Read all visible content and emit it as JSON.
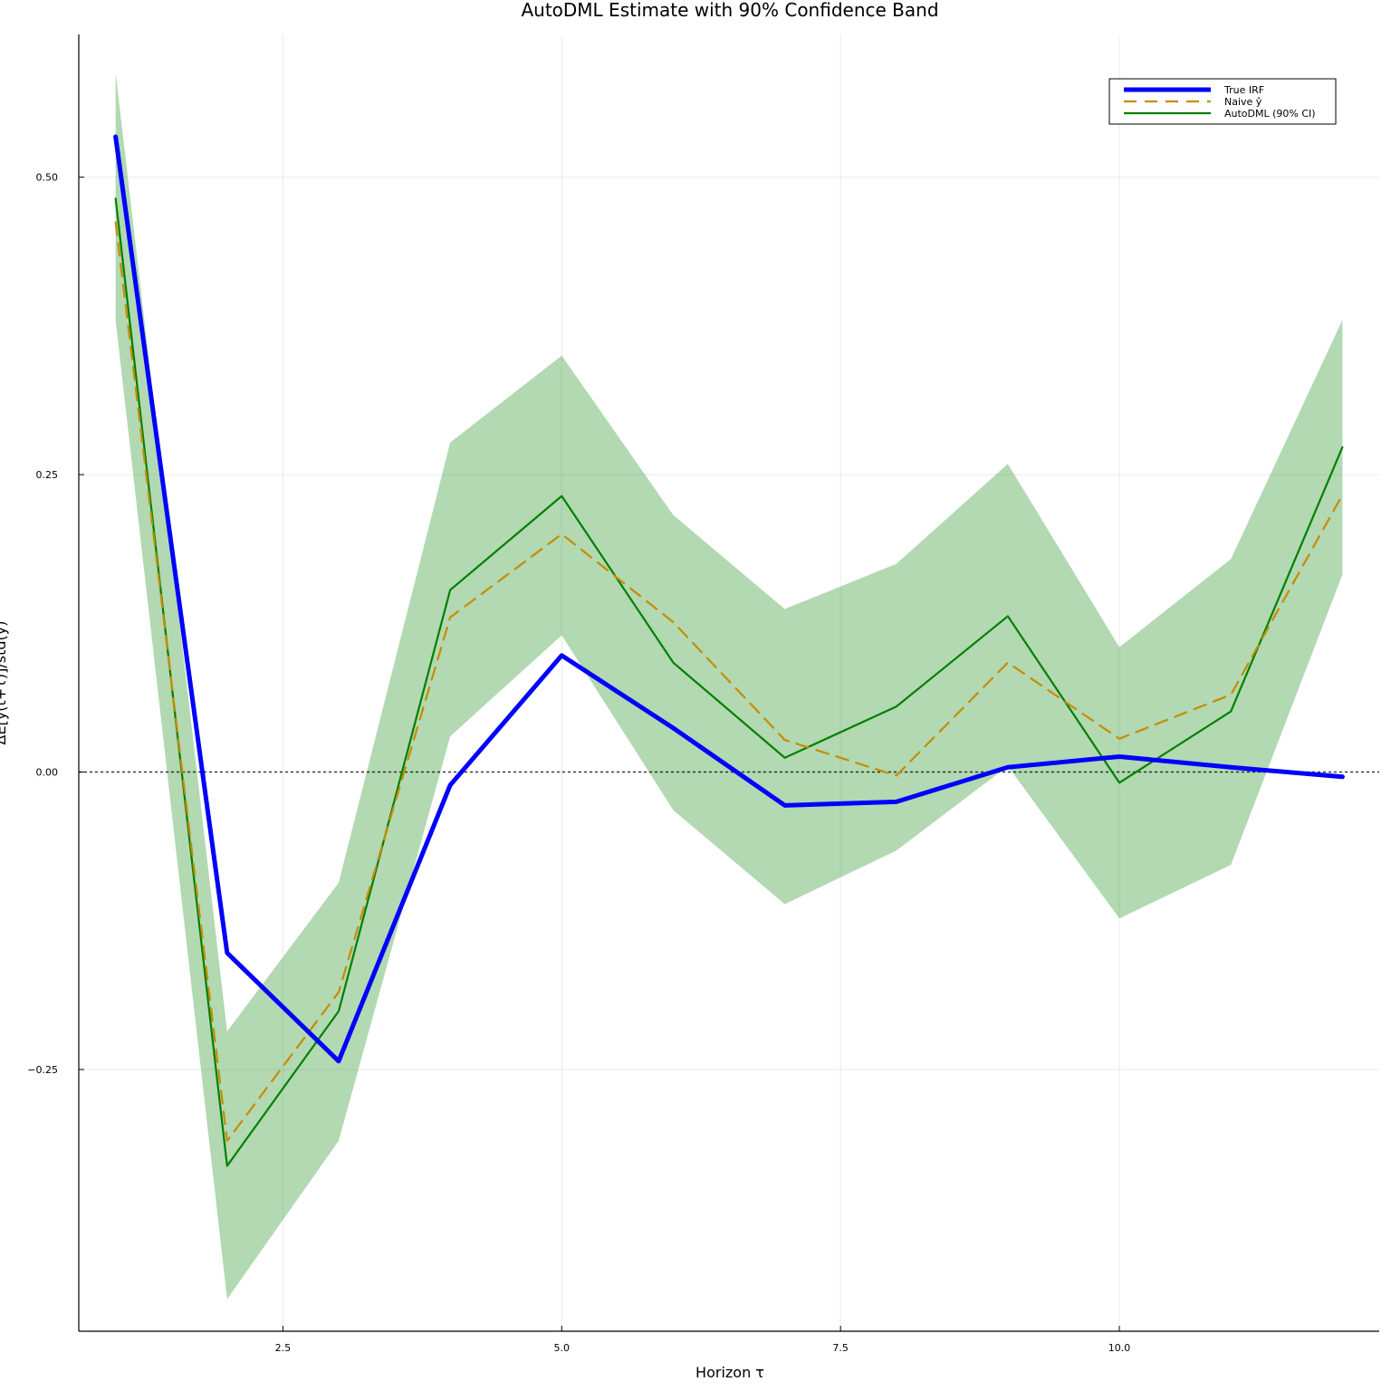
{
  "chart_data": {
    "type": "line",
    "title": "AutoDML Estimate with 90% Confidence Band",
    "xlabel": "Horizon τ",
    "ylabel": "ΔE[y(t+τ)]/std(y)",
    "xlim": [
      0.67,
      12.33
    ],
    "ylim": [
      -0.47,
      0.62
    ],
    "xticks": [
      2.5,
      5.0,
      7.5,
      10.0
    ],
    "xtick_labels": [
      "2.5",
      "5.0",
      "7.5",
      "10.0"
    ],
    "yticks": [
      -0.25,
      0.0,
      0.25,
      0.5
    ],
    "ytick_labels": [
      "−0.25",
      "0.00",
      "0.25",
      "0.50"
    ],
    "grid": true,
    "legend_position": "top-right",
    "zero_line": 0,
    "x": [
      1,
      2,
      3,
      4,
      5,
      6,
      7,
      8,
      9,
      10,
      11,
      12
    ],
    "band": {
      "series": "AutoDML (90% CI)",
      "color": "#008000",
      "lower": [
        0.38,
        -0.443,
        -0.31,
        0.03,
        0.115,
        -0.032,
        -0.111,
        -0.066,
        0.005,
        -0.123,
        -0.078,
        0.166
      ],
      "upper": [
        0.588,
        -0.218,
        -0.093,
        0.277,
        0.35,
        0.216,
        0.137,
        0.175,
        0.259,
        0.105,
        0.179,
        0.38
      ]
    },
    "series": [
      {
        "name": "True IRF",
        "color": "#0000ff",
        "style": "solid-thick",
        "values": [
          0.534,
          -0.152,
          -0.243,
          -0.011,
          0.098,
          0.037,
          -0.028,
          -0.025,
          0.004,
          0.013,
          0.004,
          -0.004
        ]
      },
      {
        "name": "Naive ŷ",
        "color": "#c68c00",
        "style": "dashed",
        "values": [
          0.462,
          -0.31,
          -0.185,
          0.13,
          0.2,
          0.126,
          0.027,
          -0.003,
          0.092,
          0.028,
          0.065,
          0.233
        ]
      },
      {
        "name": "AutoDML (90% CI)",
        "color": "#008000",
        "style": "solid",
        "values": [
          0.482,
          -0.331,
          -0.201,
          0.153,
          0.232,
          0.092,
          0.012,
          0.055,
          0.131,
          -0.009,
          0.051,
          0.273
        ]
      }
    ]
  }
}
